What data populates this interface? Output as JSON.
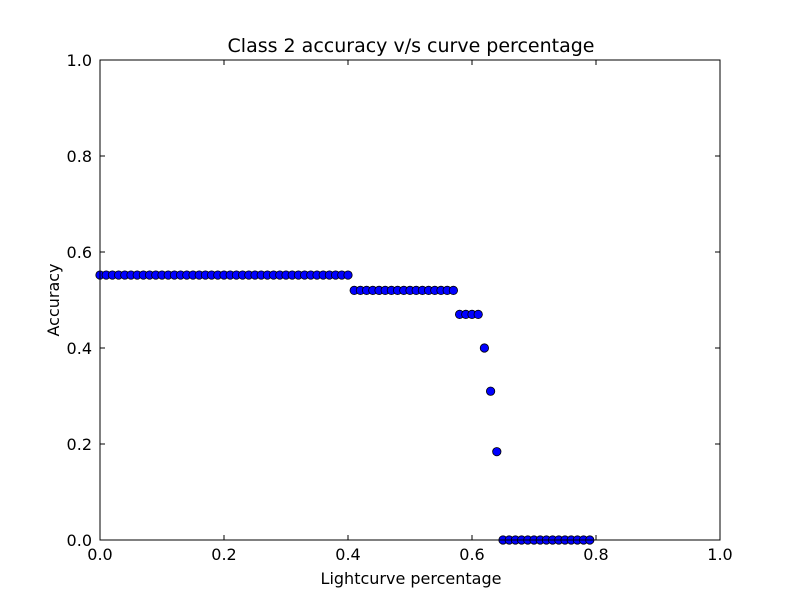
{
  "chart_data": {
    "type": "scatter",
    "title": "Class 2 accuracy v/s curve percentage",
    "xlabel": "Lightcurve percentage",
    "ylabel": "Accuracy",
    "xlim": [
      0.0,
      1.0
    ],
    "ylim": [
      0.0,
      1.0
    ],
    "xticks": [
      "0.0",
      "0.2",
      "0.4",
      "0.6",
      "0.8",
      "1.0"
    ],
    "yticks": [
      "0.0",
      "0.2",
      "0.4",
      "0.6",
      "0.8",
      "1.0"
    ],
    "grid": false,
    "legend": false,
    "marker_color": "#0000ff",
    "series": [
      {
        "x": [
          0.0,
          0.01,
          0.02,
          0.03,
          0.04,
          0.05,
          0.06,
          0.07,
          0.08,
          0.09,
          0.1,
          0.11,
          0.12,
          0.13,
          0.14,
          0.15,
          0.16,
          0.17,
          0.18,
          0.19,
          0.2,
          0.21,
          0.22,
          0.23,
          0.24,
          0.25,
          0.26,
          0.27,
          0.28,
          0.29,
          0.3,
          0.31,
          0.32,
          0.33,
          0.34,
          0.35,
          0.36,
          0.37,
          0.38,
          0.39,
          0.4,
          0.41,
          0.42,
          0.43,
          0.44,
          0.45,
          0.46,
          0.47,
          0.48,
          0.49,
          0.5,
          0.51,
          0.52,
          0.53,
          0.54,
          0.55,
          0.56,
          0.57,
          0.58,
          0.59,
          0.6,
          0.61,
          0.62,
          0.63,
          0.64,
          0.65,
          0.66,
          0.67,
          0.68,
          0.69,
          0.7,
          0.71,
          0.72,
          0.73,
          0.74,
          0.75,
          0.76,
          0.77,
          0.78,
          0.79
        ],
        "y": [
          0.552,
          0.552,
          0.552,
          0.552,
          0.552,
          0.552,
          0.552,
          0.552,
          0.552,
          0.552,
          0.552,
          0.552,
          0.552,
          0.552,
          0.552,
          0.552,
          0.552,
          0.552,
          0.552,
          0.552,
          0.552,
          0.552,
          0.552,
          0.552,
          0.552,
          0.552,
          0.552,
          0.552,
          0.552,
          0.552,
          0.552,
          0.552,
          0.552,
          0.552,
          0.552,
          0.552,
          0.552,
          0.552,
          0.552,
          0.552,
          0.552,
          0.52,
          0.52,
          0.52,
          0.52,
          0.52,
          0.52,
          0.52,
          0.52,
          0.52,
          0.52,
          0.52,
          0.52,
          0.52,
          0.52,
          0.52,
          0.52,
          0.52,
          0.47,
          0.47,
          0.47,
          0.47,
          0.4,
          0.31,
          0.184,
          0.0,
          0.0,
          0.0,
          0.0,
          0.0,
          0.0,
          0.0,
          0.0,
          0.0,
          0.0,
          0.0,
          0.0,
          0.0,
          0.0,
          0.0
        ]
      }
    ]
  }
}
